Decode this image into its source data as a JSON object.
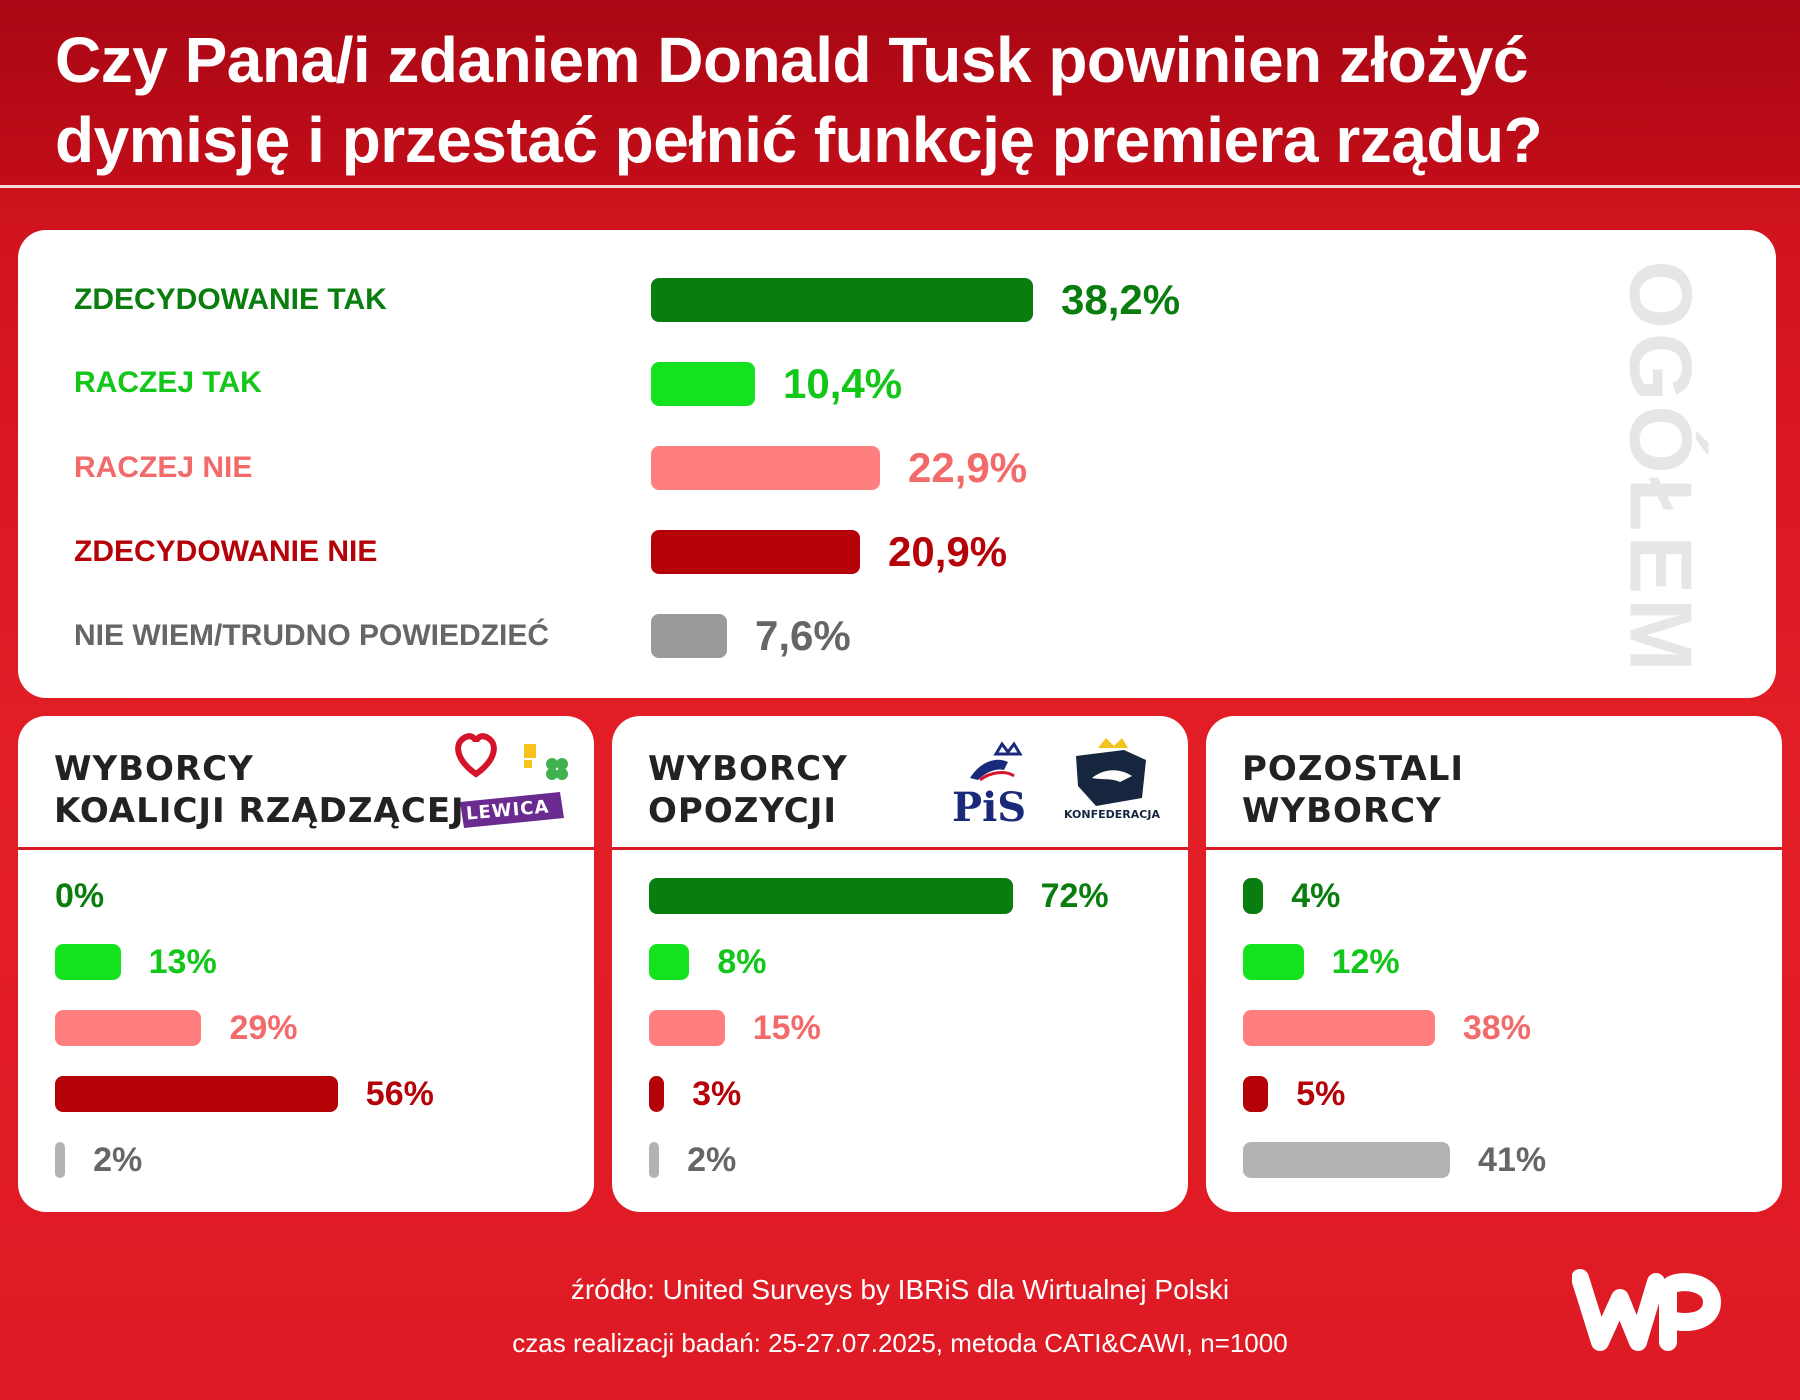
{
  "title_lines": [
    "Czy Pana/i zdaniem Donald Tusk powinien złożyć",
    "dymisję i przestać pełnić funkcję premiera rządu?"
  ],
  "colors": {
    "zdecydowanie_tak": "#0a7d0f",
    "raczej_tak": "#12c71a",
    "raczej_nie": "#f26a6a",
    "zdecydowanie_nie": "#b50209",
    "nie_wiem": "#666666",
    "bar_raczej_tak": "#14e21f",
    "bar_raczej_nie": "#ff7f7f",
    "bar_nie_wiem": "#999999",
    "bar_nie_wiem_sub": "#b3b3b3"
  },
  "chart_data": [
    {
      "type": "bar",
      "orientation": "horizontal",
      "label": "OGÓŁEM",
      "categories": [
        "ZDECYDOWANIE TAK",
        "RACZEJ TAK",
        "RACZEJ NIE",
        "ZDECYDOWANIE NIE",
        "NIE WIEM/TRUDNO POWIEDZIEĆ"
      ],
      "values": [
        38.2,
        10.4,
        22.9,
        20.9,
        7.6
      ],
      "value_labels": [
        "38,2%",
        "10,4%",
        "22,9%",
        "20,9%",
        "7,6%"
      ],
      "unit": "%"
    },
    {
      "type": "bar",
      "orientation": "horizontal",
      "title_lines": [
        "WYBORCY",
        "KOALICJI RZĄDZĄCEJ"
      ],
      "logo_text": "LEWICA",
      "values": [
        0,
        13,
        29,
        56,
        2
      ],
      "value_labels": [
        "0%",
        "13%",
        "29%",
        "56%",
        "2%"
      ],
      "unit": "%"
    },
    {
      "type": "bar",
      "orientation": "horizontal",
      "title_lines": [
        "WYBORCY",
        "OPOZYCJI"
      ],
      "logo_texts": [
        "PiS",
        "KONFEDERACJA"
      ],
      "values": [
        72,
        8,
        15,
        3,
        2
      ],
      "value_labels": [
        "72%",
        "8%",
        "15%",
        "3%",
        "2%"
      ],
      "unit": "%"
    },
    {
      "type": "bar",
      "orientation": "horizontal",
      "title_lines": [
        "POZOSTALI",
        "WYBORCY"
      ],
      "values": [
        4,
        12,
        38,
        5,
        41
      ],
      "value_labels": [
        "4%",
        "12%",
        "38%",
        "5%",
        "41%"
      ],
      "unit": "%"
    }
  ],
  "footer": {
    "source": "źródło: United Surveys by IBRiS dla Wirtualnej Polski",
    "details": "czas realizacji badań: 25-27.07.2025, metoda CATI&CAWI, n=1000"
  }
}
